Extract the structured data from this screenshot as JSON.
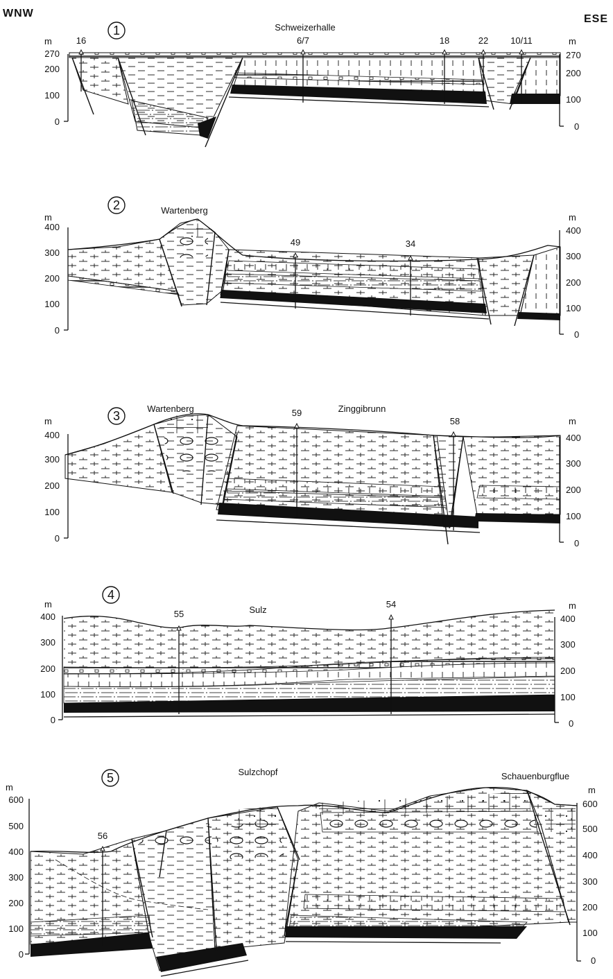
{
  "orientation": {
    "left": "WNW",
    "right": "ESE"
  },
  "axis_unit": "m",
  "sections": [
    {
      "number": "1",
      "locality_labels": [
        "Schweizerhalle"
      ],
      "boreholes": [
        "16",
        "6/7",
        "18",
        "22",
        "10/11"
      ],
      "left_ticks": [
        "270",
        "200",
        "100",
        "0"
      ],
      "right_ticks": [
        "270",
        "200",
        "100",
        "0"
      ]
    },
    {
      "number": "2",
      "locality_labels": [
        "Wartenberg"
      ],
      "boreholes": [
        "49",
        "34"
      ],
      "left_ticks": [
        "400",
        "300",
        "200",
        "100",
        "0"
      ],
      "right_ticks": [
        "400",
        "300",
        "200",
        "100",
        "0"
      ]
    },
    {
      "number": "3",
      "locality_labels": [
        "Wartenberg",
        "Zinggibrunn"
      ],
      "boreholes": [
        "59",
        "58"
      ],
      "left_ticks": [
        "400",
        "300",
        "200",
        "100",
        "0"
      ],
      "right_ticks": [
        "400",
        "300",
        "200",
        "100",
        "0"
      ]
    },
    {
      "number": "4",
      "locality_labels": [
        "Sulz"
      ],
      "boreholes": [
        "55",
        "54"
      ],
      "left_ticks": [
        "400",
        "300",
        "200",
        "100",
        "0"
      ],
      "right_ticks": [
        "400",
        "300",
        "200",
        "100",
        "0"
      ]
    },
    {
      "number": "5",
      "locality_labels": [
        "Sulzchopf",
        "Schauenburgflue"
      ],
      "boreholes": [
        "56"
      ],
      "left_ticks": [
        "600",
        "500",
        "400",
        "300",
        "200",
        "100",
        "0"
      ],
      "right_ticks": [
        "600",
        "500",
        "400",
        "300",
        "200",
        "100",
        "0"
      ]
    }
  ]
}
